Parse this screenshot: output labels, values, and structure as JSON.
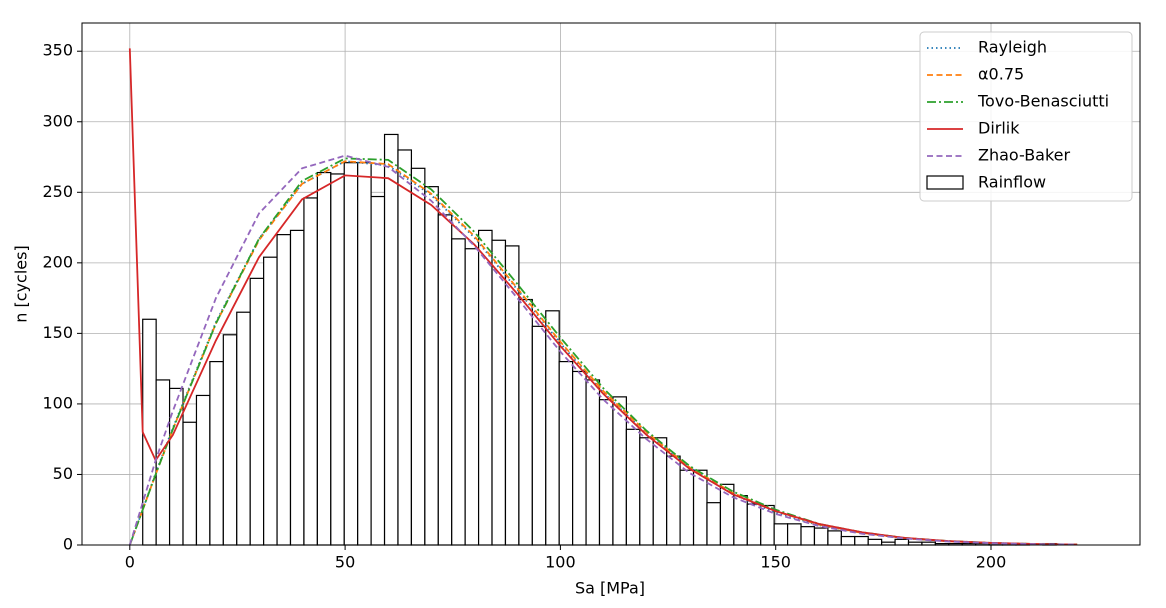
{
  "chart_data": {
    "type": "histogram",
    "xlabel": "Sa [MPa]",
    "ylabel": "n [cycles]",
    "xlim": [
      -11.1,
      234.6
    ],
    "ylim": [
      0,
      370
    ],
    "xticks": [
      0,
      50,
      100,
      150,
      200
    ],
    "yticks": [
      0,
      50,
      100,
      150,
      200,
      250,
      300,
      350
    ],
    "grid": true,
    "legend": "upper right",
    "histogram": {
      "name": "Rainflow",
      "color": "#000000",
      "bins": [
        3,
        6.12,
        9.24,
        12.36,
        15.48,
        18.6,
        21.72,
        24.84,
        27.96,
        31.08,
        34.2,
        37.32,
        40.44,
        43.56,
        46.68,
        49.8,
        52.92,
        56.04,
        59.16,
        62.28,
        65.4,
        68.52,
        71.64,
        74.76,
        77.88,
        81,
        84.12,
        87.24,
        90.36,
        93.48,
        96.6,
        99.72,
        102.84,
        105.96,
        109.08,
        112.2,
        115.32,
        118.44,
        121.56,
        124.68,
        127.8,
        130.92,
        134.04,
        137.16,
        140.28,
        143.4,
        146.52,
        149.64,
        152.76,
        155.88,
        159,
        162.12,
        165.24,
        168.36,
        171.48,
        174.6,
        177.72,
        180.84,
        183.96,
        187.08,
        190.2,
        193.32,
        196.44,
        199.56,
        202.68,
        205.8,
        208.92,
        212.04,
        215.16,
        218.28,
        221.4
      ],
      "counts": [
        160,
        117,
        111,
        87,
        106,
        130,
        149,
        165,
        189,
        204,
        220,
        223,
        246,
        264,
        263,
        271,
        271,
        247,
        291,
        280,
        267,
        254,
        234,
        217,
        210,
        223,
        216,
        212,
        174,
        155,
        166,
        130,
        123,
        117,
        103,
        105,
        82,
        76,
        76,
        63,
        53,
        53,
        30,
        43,
        35,
        29,
        28,
        15,
        15,
        13,
        12,
        10,
        6,
        6,
        4,
        2,
        4,
        2,
        2,
        1,
        1,
        1,
        1,
        1,
        1,
        1,
        0,
        1,
        0,
        0
      ]
    },
    "x": [
      0,
      3,
      6,
      10,
      20,
      30,
      40,
      50,
      60,
      70,
      80,
      90,
      100,
      110,
      120,
      130,
      140,
      150,
      160,
      170,
      180,
      190,
      200,
      210,
      220
    ],
    "series": [
      {
        "name": "Rayleigh",
        "color": "#1f77b4",
        "linestyle": "dotted",
        "values": [
          0,
          25,
          51,
          83,
          158,
          217,
          256,
          272,
          269,
          248,
          218,
          181,
          143,
          108,
          79,
          55,
          36,
          23,
          14,
          8.4,
          4.8,
          2.6,
          1.4,
          0.7,
          0.3
        ]
      },
      {
        "name": "α0.75",
        "color": "#ff7f0e",
        "linestyle": "dashed",
        "values": [
          0,
          25,
          50,
          82,
          157,
          216,
          256,
          272,
          270,
          249,
          219,
          182,
          144,
          109,
          80,
          55,
          37,
          24,
          14.5,
          8.6,
          4.9,
          2.7,
          1.4,
          0.7,
          0.3
        ]
      },
      {
        "name": "Tovo-Benasciutti",
        "color": "#2ca02c",
        "linestyle": "dashdot",
        "values": [
          0,
          25,
          50,
          82,
          157,
          217,
          258,
          274,
          273,
          252,
          222,
          185,
          147,
          111,
          81,
          56,
          38,
          25,
          15,
          9,
          5,
          2.8,
          1.5,
          0.7,
          0.3
        ]
      },
      {
        "name": "Dirlik",
        "color": "#d62728",
        "linestyle": "solid",
        "values": [
          352,
          80,
          60,
          78,
          145,
          204,
          245,
          262,
          260,
          241,
          213,
          178,
          141,
          107,
          78,
          54,
          36,
          24,
          15,
          9,
          5,
          2.8,
          1.5,
          0.7,
          0.3
        ]
      },
      {
        "name": "Zhao-Baker",
        "color": "#9467bd",
        "linestyle": "dashed",
        "values": [
          0,
          30,
          60,
          95,
          175,
          235,
          267,
          276,
          268,
          244,
          212,
          175,
          137,
          103,
          75,
          51,
          34,
          22,
          13.5,
          8,
          4.6,
          2.5,
          1.3,
          0.6,
          0.3
        ]
      }
    ]
  }
}
